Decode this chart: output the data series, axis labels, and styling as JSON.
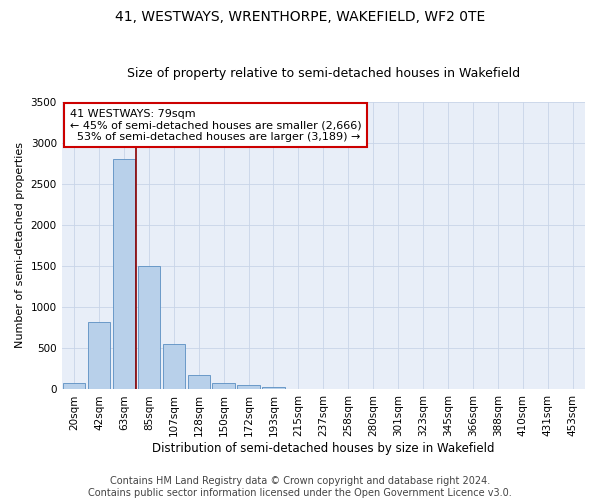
{
  "title1": "41, WESTWAYS, WRENTHORPE, WAKEFIELD, WF2 0TE",
  "title2": "Size of property relative to semi-detached houses in Wakefield",
  "xlabel": "Distribution of semi-detached houses by size in Wakefield",
  "ylabel": "Number of semi-detached properties",
  "categories": [
    "20sqm",
    "42sqm",
    "63sqm",
    "85sqm",
    "107sqm",
    "128sqm",
    "150sqm",
    "172sqm",
    "193sqm",
    "215sqm",
    "237sqm",
    "258sqm",
    "280sqm",
    "301sqm",
    "323sqm",
    "345sqm",
    "366sqm",
    "388sqm",
    "410sqm",
    "431sqm",
    "453sqm"
  ],
  "values": [
    80,
    820,
    2800,
    1500,
    550,
    170,
    80,
    50,
    25,
    5,
    2,
    1,
    0,
    0,
    0,
    0,
    0,
    0,
    0,
    0,
    0
  ],
  "bar_color": "#b8d0ea",
  "bar_edge_color": "#5a8fc2",
  "vline_x_index": 2.48,
  "vline_color": "#8b0000",
  "annotation_line1": "41 WESTWAYS: 79sqm",
  "annotation_line2": "← 45% of semi-detached houses are smaller (2,666)",
  "annotation_line3": "  53% of semi-detached houses are larger (3,189) →",
  "annotation_box_color": "#ffffff",
  "annotation_box_edge_color": "#cc0000",
  "ylim": [
    0,
    3500
  ],
  "yticks": [
    0,
    500,
    1000,
    1500,
    2000,
    2500,
    3000,
    3500
  ],
  "background_color": "#e8eef8",
  "grid_color": "#c8d4e8",
  "footer": "Contains HM Land Registry data © Crown copyright and database right 2024.\nContains public sector information licensed under the Open Government Licence v3.0.",
  "title1_fontsize": 10,
  "title2_fontsize": 9,
  "xlabel_fontsize": 8.5,
  "ylabel_fontsize": 8,
  "tick_fontsize": 7.5,
  "annotation_fontsize": 8,
  "footer_fontsize": 7
}
